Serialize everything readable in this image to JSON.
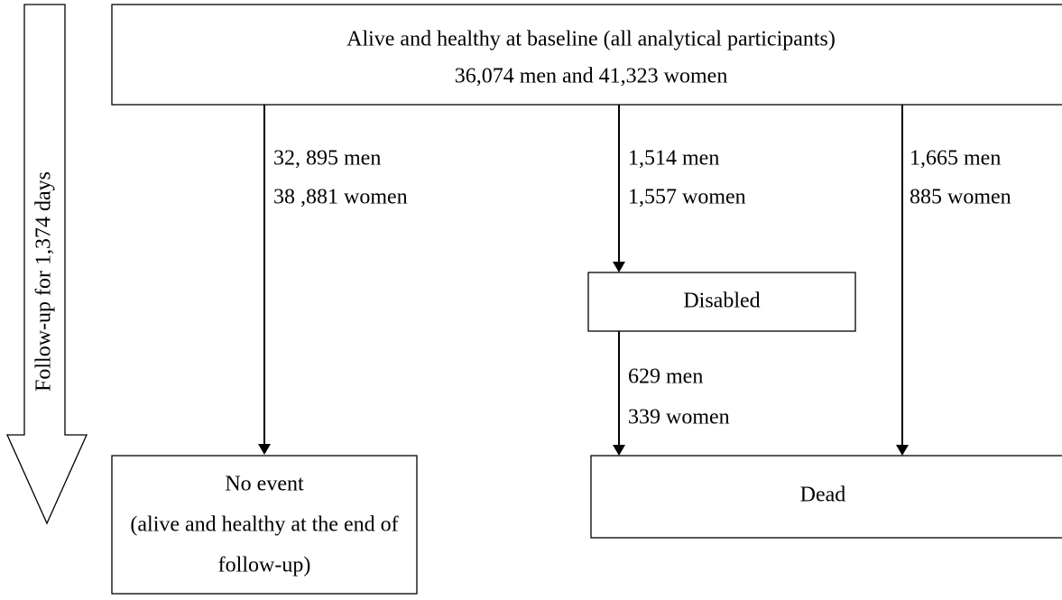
{
  "follow_up": "Follow-up for 1,374 days",
  "nodes": [
    {
      "lines": [
        "Alive and healthy at baseline (all analytical participants)",
        "36,074 men and 41,323 women"
      ]
    },
    {
      "lines": [
        "Disabled"
      ]
    },
    {
      "lines": [
        "No event",
        "(alive and healthy at the end of",
        "follow-up)"
      ]
    },
    {
      "lines": [
        "Dead"
      ]
    }
  ],
  "edges": [
    {
      "lines": [
        "32, 895 men",
        "38 ,881 women"
      ]
    },
    {
      "lines": [
        "1,514 men",
        "1,557 women"
      ]
    },
    {
      "lines": [
        "1,665 men",
        "885 women"
      ]
    },
    {
      "lines": [
        "629 men",
        "339 women"
      ]
    }
  ]
}
